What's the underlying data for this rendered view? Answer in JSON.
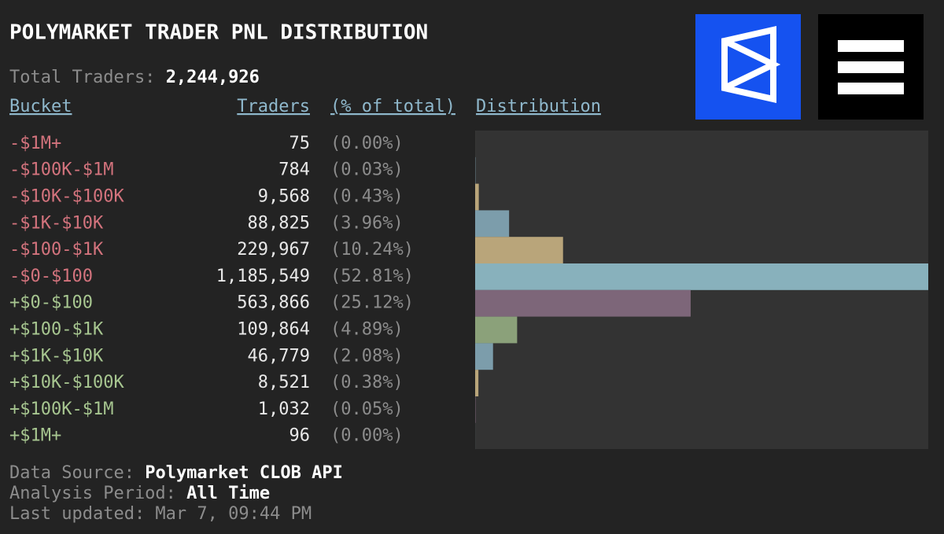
{
  "title": "POLYMARKET TRADER PNL DISTRIBUTION",
  "total": {
    "label": "Total Traders:",
    "value": "2,244,926"
  },
  "footer": {
    "source_label": "Data Source:",
    "source": "Polymarket CLOB API",
    "period_label": "Analysis Period:",
    "period": "All Time",
    "updated": "Last updated: Mar 7, 09:44 PM"
  },
  "chart_data": {
    "type": "bar",
    "orientation": "horizontal",
    "columns": [
      "Bucket",
      "Traders",
      "(% of total)",
      "Distribution"
    ],
    "categories": [
      "-$1M+",
      "-$100K-$1M",
      "-$10K-$100K",
      "-$1K-$10K",
      "-$100-$1K",
      "-$0-$100",
      "+$0-$100",
      "+$100-$1K",
      "+$1K-$10K",
      "+$10K-$100K",
      "+$100K-$1M",
      "+$1M+"
    ],
    "category_colors": [
      "#d3737d",
      "#d3737d",
      "#d3737d",
      "#d3737d",
      "#d3737d",
      "#d3737d",
      "#a7c690",
      "#a7c690",
      "#a7c690",
      "#a7c690",
      "#a7c690",
      "#a7c690"
    ],
    "values": [
      75,
      784,
      9568,
      88825,
      229967,
      1185549,
      563866,
      109864,
      46779,
      8521,
      1032,
      96
    ],
    "value_labels": [
      "75",
      "784",
      "9,568",
      "88,825",
      "229,967",
      "1,185,549",
      "563,866",
      "109,864",
      "46,779",
      "8,521",
      "1,032",
      "96"
    ],
    "percent": [
      0,
      0.03,
      0.43,
      3.96,
      10.24,
      52.81,
      25.12,
      4.89,
      2.08,
      0.38,
      0.05,
      0
    ],
    "percent_labels": [
      "(0.00%)",
      "(0.03%)",
      "(0.43%)",
      "(3.96%)",
      "(10.24%)",
      "(52.81%)",
      "(25.12%)",
      "(4.89%)",
      "(2.08%)",
      "(0.38%)",
      "(0.05%)",
      "(0.00%)"
    ],
    "colors": [
      "#8a9a78",
      "#7c9dab",
      "#b9a57a",
      "#7c9dab",
      "#b9a57a",
      "#88b1bc",
      "#7d6679",
      "#8ba17a",
      "#7c9dab",
      "#b9a57a",
      "#7d6679",
      "#7c9dab"
    ]
  }
}
